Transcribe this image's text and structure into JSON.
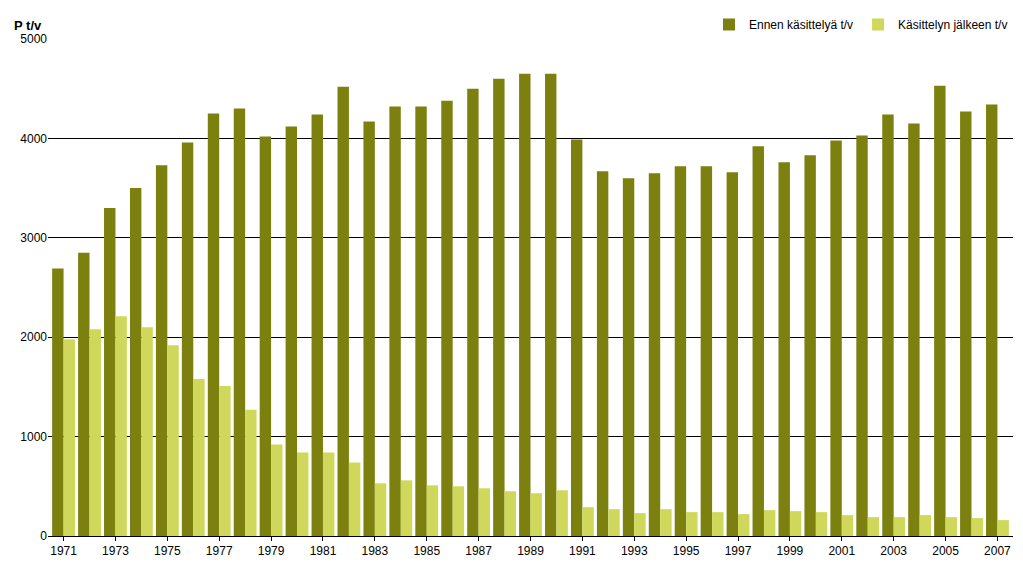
{
  "chart_data": {
    "type": "bar",
    "y_label": "P t/v",
    "categories": [
      "1971",
      null,
      "1973",
      null,
      "1975",
      null,
      "1977",
      null,
      "1979",
      null,
      "1981",
      null,
      "1983",
      null,
      "1985",
      null,
      "1987",
      null,
      "1989",
      null,
      "1991",
      null,
      "1993",
      null,
      "1995",
      null,
      "1997",
      null,
      "1999",
      null,
      "2001",
      null,
      "2003",
      null,
      "2005",
      null,
      "2007"
    ],
    "series": [
      {
        "name": "Ennen käsittelyä t/v",
        "color": "#7b800f",
        "values": [
          2690,
          2850,
          3300,
          3500,
          3730,
          3960,
          4250,
          4300,
          4020,
          4120,
          4240,
          4520,
          4170,
          4320,
          4320,
          4380,
          4500,
          4600,
          4650,
          4650,
          3990,
          3670,
          3600,
          3650,
          3720,
          3720,
          3660,
          3920,
          3760,
          3830,
          3980,
          4030,
          4240,
          4150,
          4530,
          4270,
          4340
        ]
      },
      {
        "name": "Käsittelyn jälkeen t/v",
        "color": "#cfd85a",
        "values": [
          1980,
          2080,
          2210,
          2100,
          1920,
          1580,
          1510,
          1270,
          920,
          840,
          840,
          740,
          530,
          560,
          510,
          500,
          480,
          450,
          430,
          460,
          290,
          270,
          230,
          270,
          240,
          240,
          220,
          260,
          250,
          240,
          210,
          190,
          190,
          210,
          190,
          180,
          160
        ]
      }
    ],
    "ylim": [
      0,
      5000
    ],
    "yticks": [
      0,
      1000,
      2000,
      3000,
      4000,
      5000
    ],
    "grid": true,
    "legend": "top-right"
  }
}
